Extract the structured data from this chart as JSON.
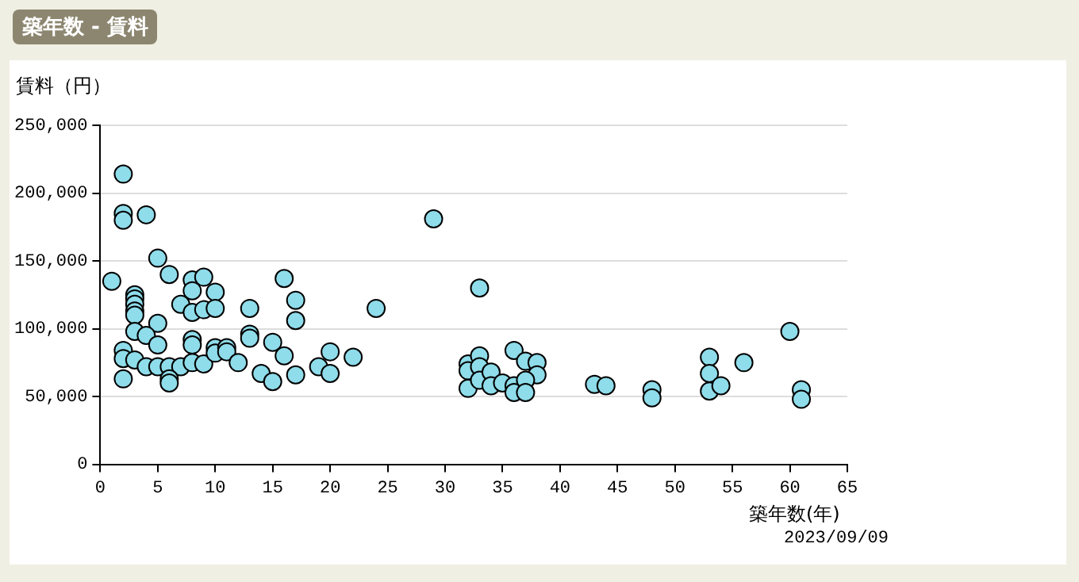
{
  "chart_data": {
    "type": "scatter",
    "title": "築年数 - 賃料",
    "xlabel": "築年数(年)",
    "ylabel": "賃料（円）",
    "annotations": [
      "2023/09/09"
    ],
    "xlim": [
      0,
      65
    ],
    "xticks": [
      0,
      5,
      10,
      15,
      20,
      25,
      30,
      35,
      40,
      45,
      50,
      55,
      60,
      65
    ],
    "ylim": [
      0,
      250000
    ],
    "yticks": [
      {
        "value": 0,
        "label": "0"
      },
      {
        "value": 50000,
        "label": "50,000"
      },
      {
        "value": 100000,
        "label": "100,000"
      },
      {
        "value": 150000,
        "label": "150,000"
      },
      {
        "value": 200000,
        "label": "200,000"
      },
      {
        "value": 250000,
        "label": "250,000"
      }
    ],
    "grid": "y",
    "legend": false,
    "marker": "circle",
    "series": [
      {
        "color": "#8fdcea",
        "x": [
          1,
          2,
          2,
          2,
          4,
          5,
          6,
          3,
          3,
          3,
          3,
          3,
          8,
          8,
          9,
          10,
          7,
          8,
          9,
          10,
          5,
          3,
          4,
          5,
          8,
          8,
          10,
          13,
          13,
          13,
          15,
          16,
          16,
          2,
          2,
          3,
          4,
          5,
          6,
          7,
          8,
          9,
          10,
          11,
          11,
          12,
          14,
          15,
          6,
          6,
          2,
          17,
          17,
          17,
          24,
          19,
          20,
          20,
          22,
          29,
          33,
          32,
          32,
          32,
          33,
          33,
          33,
          34,
          34,
          35,
          36,
          37,
          38,
          38,
          36,
          36,
          37,
          37,
          43,
          44,
          48,
          48,
          53,
          53,
          53,
          54,
          56,
          60,
          61,
          61
        ],
        "values": [
          135000,
          214000,
          185000,
          180000,
          184000,
          152000,
          140000,
          125000,
          122000,
          118000,
          113000,
          110000,
          136000,
          128000,
          138000,
          127000,
          118000,
          112000,
          114000,
          115000,
          104000,
          98000,
          95000,
          88000,
          92000,
          88000,
          86000,
          115000,
          96000,
          93000,
          90000,
          137000,
          80000,
          84000,
          78000,
          77000,
          72000,
          72000,
          72000,
          72000,
          75000,
          74000,
          82000,
          86000,
          83000,
          75000,
          67000,
          61000,
          63000,
          60000,
          63000,
          121000,
          106000,
          66000,
          115000,
          72000,
          83000,
          67000,
          79000,
          181000,
          130000,
          74000,
          69000,
          56000,
          80000,
          72000,
          62000,
          68000,
          58000,
          60000,
          84000,
          76000,
          75000,
          66000,
          58000,
          53000,
          62000,
          53000,
          59000,
          58000,
          55000,
          49000,
          79000,
          67000,
          54000,
          58000,
          75000,
          98000,
          55000,
          48000
        ]
      }
    ]
  }
}
